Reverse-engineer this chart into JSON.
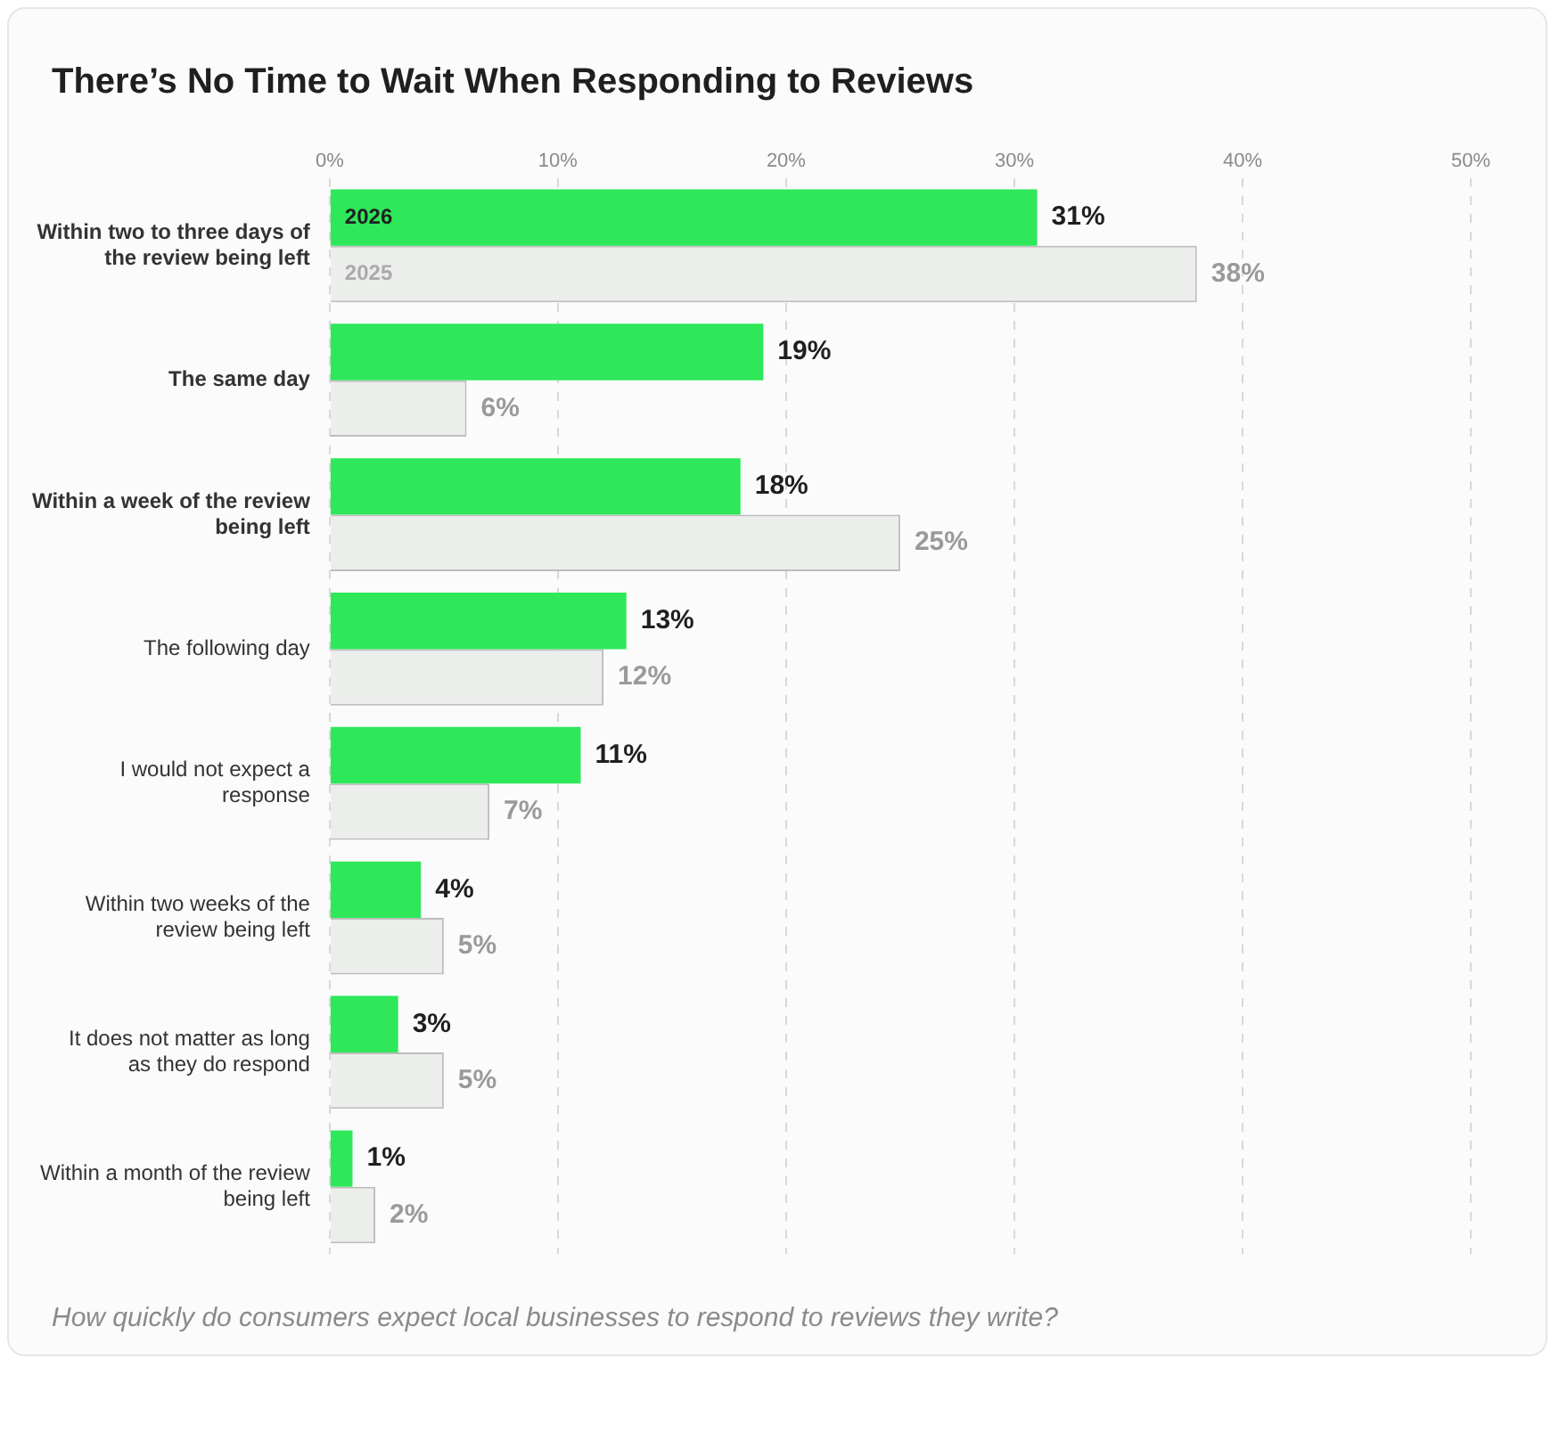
{
  "chart_data": {
    "type": "bar",
    "orientation": "horizontal",
    "title": "There’s No Time to Wait When Responding to Reviews",
    "categories": [
      "Within two to three days of the review being left",
      "The same day",
      "Within a week of the review being left",
      "The following day",
      "I would not expect a response",
      "Within two weeks of the review being left",
      "It does not matter as long as they do respond",
      "Within a month of the review being left"
    ],
    "series": [
      {
        "name": "2026",
        "color": "#2ee85a",
        "values": [
          31,
          19,
          18,
          13,
          11,
          4,
          3,
          1
        ],
        "value_labels": [
          "31%",
          "19%",
          "18%",
          "13%",
          "11%",
          "4%",
          "3%",
          "1%"
        ]
      },
      {
        "name": "2025",
        "color": "#eceeec",
        "values": [
          38,
          6,
          25,
          12,
          7,
          5,
          5,
          2
        ],
        "value_labels": [
          "38%",
          "6%",
          "25%",
          "12%",
          "7%",
          "5%",
          "5%",
          "2%"
        ]
      }
    ],
    "xlim": [
      0,
      50
    ],
    "xticks": [
      {
        "value": 0,
        "label": "0%"
      },
      {
        "value": 10,
        "label": "10%"
      },
      {
        "value": 20,
        "label": "20%"
      },
      {
        "value": 30,
        "label": "30%"
      },
      {
        "value": 40,
        "label": "40%"
      },
      {
        "value": 50,
        "label": "50%"
      }
    ],
    "grid": "x",
    "legend": false,
    "annotations": [
      "How quickly do consumers expect local businesses to respond to reviews they write?"
    ]
  }
}
